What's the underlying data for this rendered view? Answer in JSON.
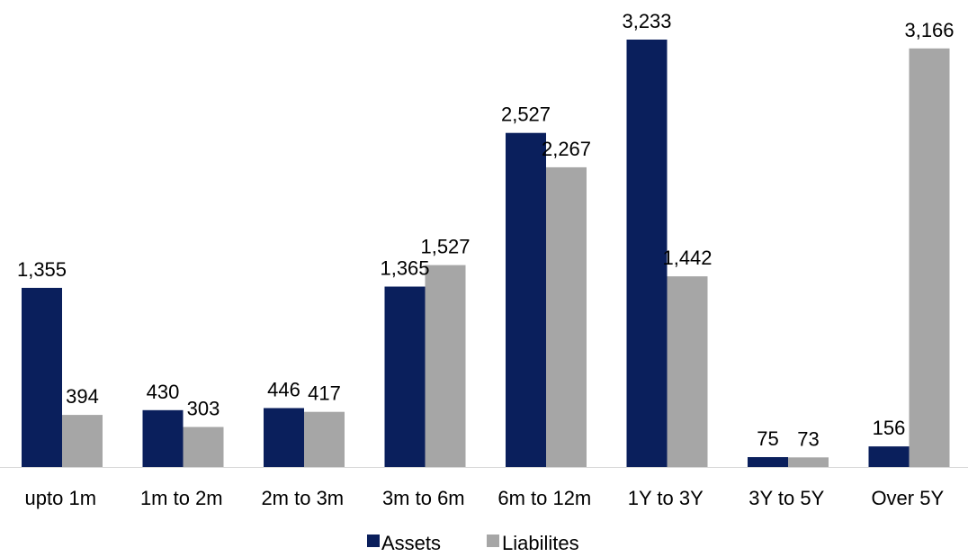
{
  "chart_data": {
    "type": "bar",
    "categories": [
      "upto 1m",
      "1m to 2m",
      "2m to 3m",
      "3m to 6m",
      "6m to 12m",
      "1Y to 3Y",
      "3Y to 5Y",
      "Over 5Y"
    ],
    "series": [
      {
        "name": "Assets",
        "values": [
          1355,
          430,
          446,
          1365,
          2527,
          3233,
          75,
          156
        ],
        "color": "#0a1f5c"
      },
      {
        "name": "Liabilites",
        "values": [
          394,
          303,
          417,
          1527,
          2267,
          1442,
          73,
          3166
        ],
        "color": "#a6a6a6"
      }
    ],
    "data_labels": [
      [
        "1,355",
        "430",
        "446",
        "1,365",
        "2,527",
        "3,233",
        "75",
        "156"
      ],
      [
        "394",
        "303",
        "417",
        "1,527",
        "2,267",
        "1,442",
        "73",
        "3,166"
      ]
    ],
    "title": "",
    "xlabel": "",
    "ylabel": "",
    "ylim": [
      0,
      3233
    ],
    "grid": false,
    "legend_position": "bottom-center",
    "axis_color": "#d9d9d9"
  }
}
